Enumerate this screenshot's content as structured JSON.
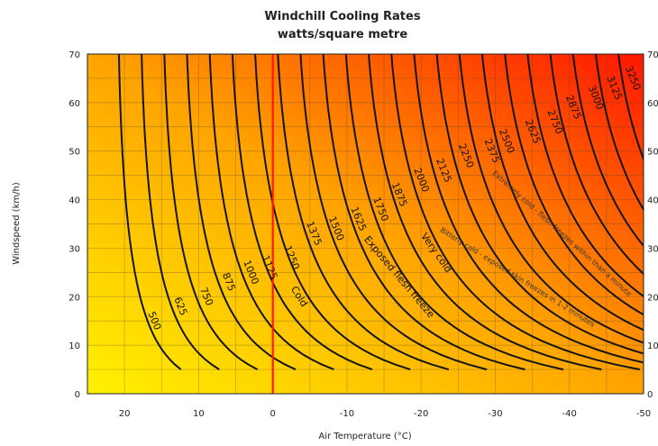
{
  "chart_data": {
    "type": "line",
    "title": "Windchill Cooling Rates",
    "subtitle": "watts/square metre",
    "xlabel": "Air Temperature (°C)",
    "ylabel": "Windspeed (km/h)",
    "xlim": [
      25,
      -50
    ],
    "ylim": [
      0,
      70
    ],
    "xticks": [
      "20",
      "10",
      "0",
      "-10",
      "-20",
      "-30",
      "-40",
      "-50"
    ],
    "xtick_values": [
      20,
      10,
      0,
      -10,
      -20,
      -30,
      -40,
      -50
    ],
    "yticks": [
      "0",
      "10",
      "20",
      "30",
      "40",
      "50",
      "60",
      "70"
    ],
    "ytick_values": [
      0,
      10,
      20,
      30,
      40,
      50,
      60,
      70
    ],
    "grid": true,
    "freezing_line_x": 0,
    "series": [
      {
        "name": "500",
        "label_at": [
          16,
          15
        ]
      },
      {
        "name": "625",
        "label_at": [
          12.5,
          18
        ]
      },
      {
        "name": "750",
        "label_at": [
          9,
          20
        ]
      },
      {
        "name": "875",
        "label_at": [
          6,
          23
        ]
      },
      {
        "name": "1000",
        "label_at": [
          3,
          25
        ]
      },
      {
        "name": "1125",
        "label_at": [
          0.5,
          26
        ]
      },
      {
        "name": "1250",
        "label_at": [
          -2.5,
          28
        ]
      },
      {
        "name": "1375",
        "label_at": [
          -5.5,
          33
        ]
      },
      {
        "name": "1500",
        "label_at": [
          -8.5,
          34
        ]
      },
      {
        "name": "1625",
        "label_at": [
          -11.5,
          36
        ]
      },
      {
        "name": "1750",
        "label_at": [
          -14.5,
          38
        ]
      },
      {
        "name": "1875",
        "label_at": [
          -17,
          41
        ]
      },
      {
        "name": "2000",
        "label_at": [
          -20,
          44
        ]
      },
      {
        "name": "2125",
        "label_at": [
          -23,
          46
        ]
      },
      {
        "name": "2250",
        "label_at": [
          -26,
          49
        ]
      },
      {
        "name": "2375",
        "label_at": [
          -29.5,
          50
        ]
      },
      {
        "name": "2500",
        "label_at": [
          -31.5,
          52
        ]
      },
      {
        "name": "2625",
        "label_at": [
          -35,
          54
        ]
      },
      {
        "name": "2750",
        "label_at": [
          -38,
          56
        ]
      },
      {
        "name": "2875",
        "label_at": [
          -40.5,
          59
        ]
      },
      {
        "name": "3000",
        "label_at": [
          -43.5,
          61
        ]
      },
      {
        "name": "3125",
        "label_at": [
          -46,
          63
        ]
      },
      {
        "name": "3250",
        "label_at": [
          -48.5,
          65
        ]
      }
    ],
    "annotations": [
      {
        "text": "Cold",
        "x": -3.5,
        "y": 20,
        "rotate": 58,
        "size": "normal"
      },
      {
        "text": "Exposed flesh freeze",
        "x": -17,
        "y": 24,
        "rotate": 50,
        "size": "normal"
      },
      {
        "text": "Very cold",
        "x": -22,
        "y": 29,
        "rotate": 55,
        "size": "normal"
      },
      {
        "text": "Bitterly cold - exposed skin freezes in 1-2 minutes",
        "x": -33,
        "y": 24,
        "rotate": 32,
        "size": "small"
      },
      {
        "text": "Extremely cold - flesh freezes within than a minute",
        "x": -39,
        "y": 33,
        "rotate": 42,
        "size": "small"
      }
    ]
  }
}
